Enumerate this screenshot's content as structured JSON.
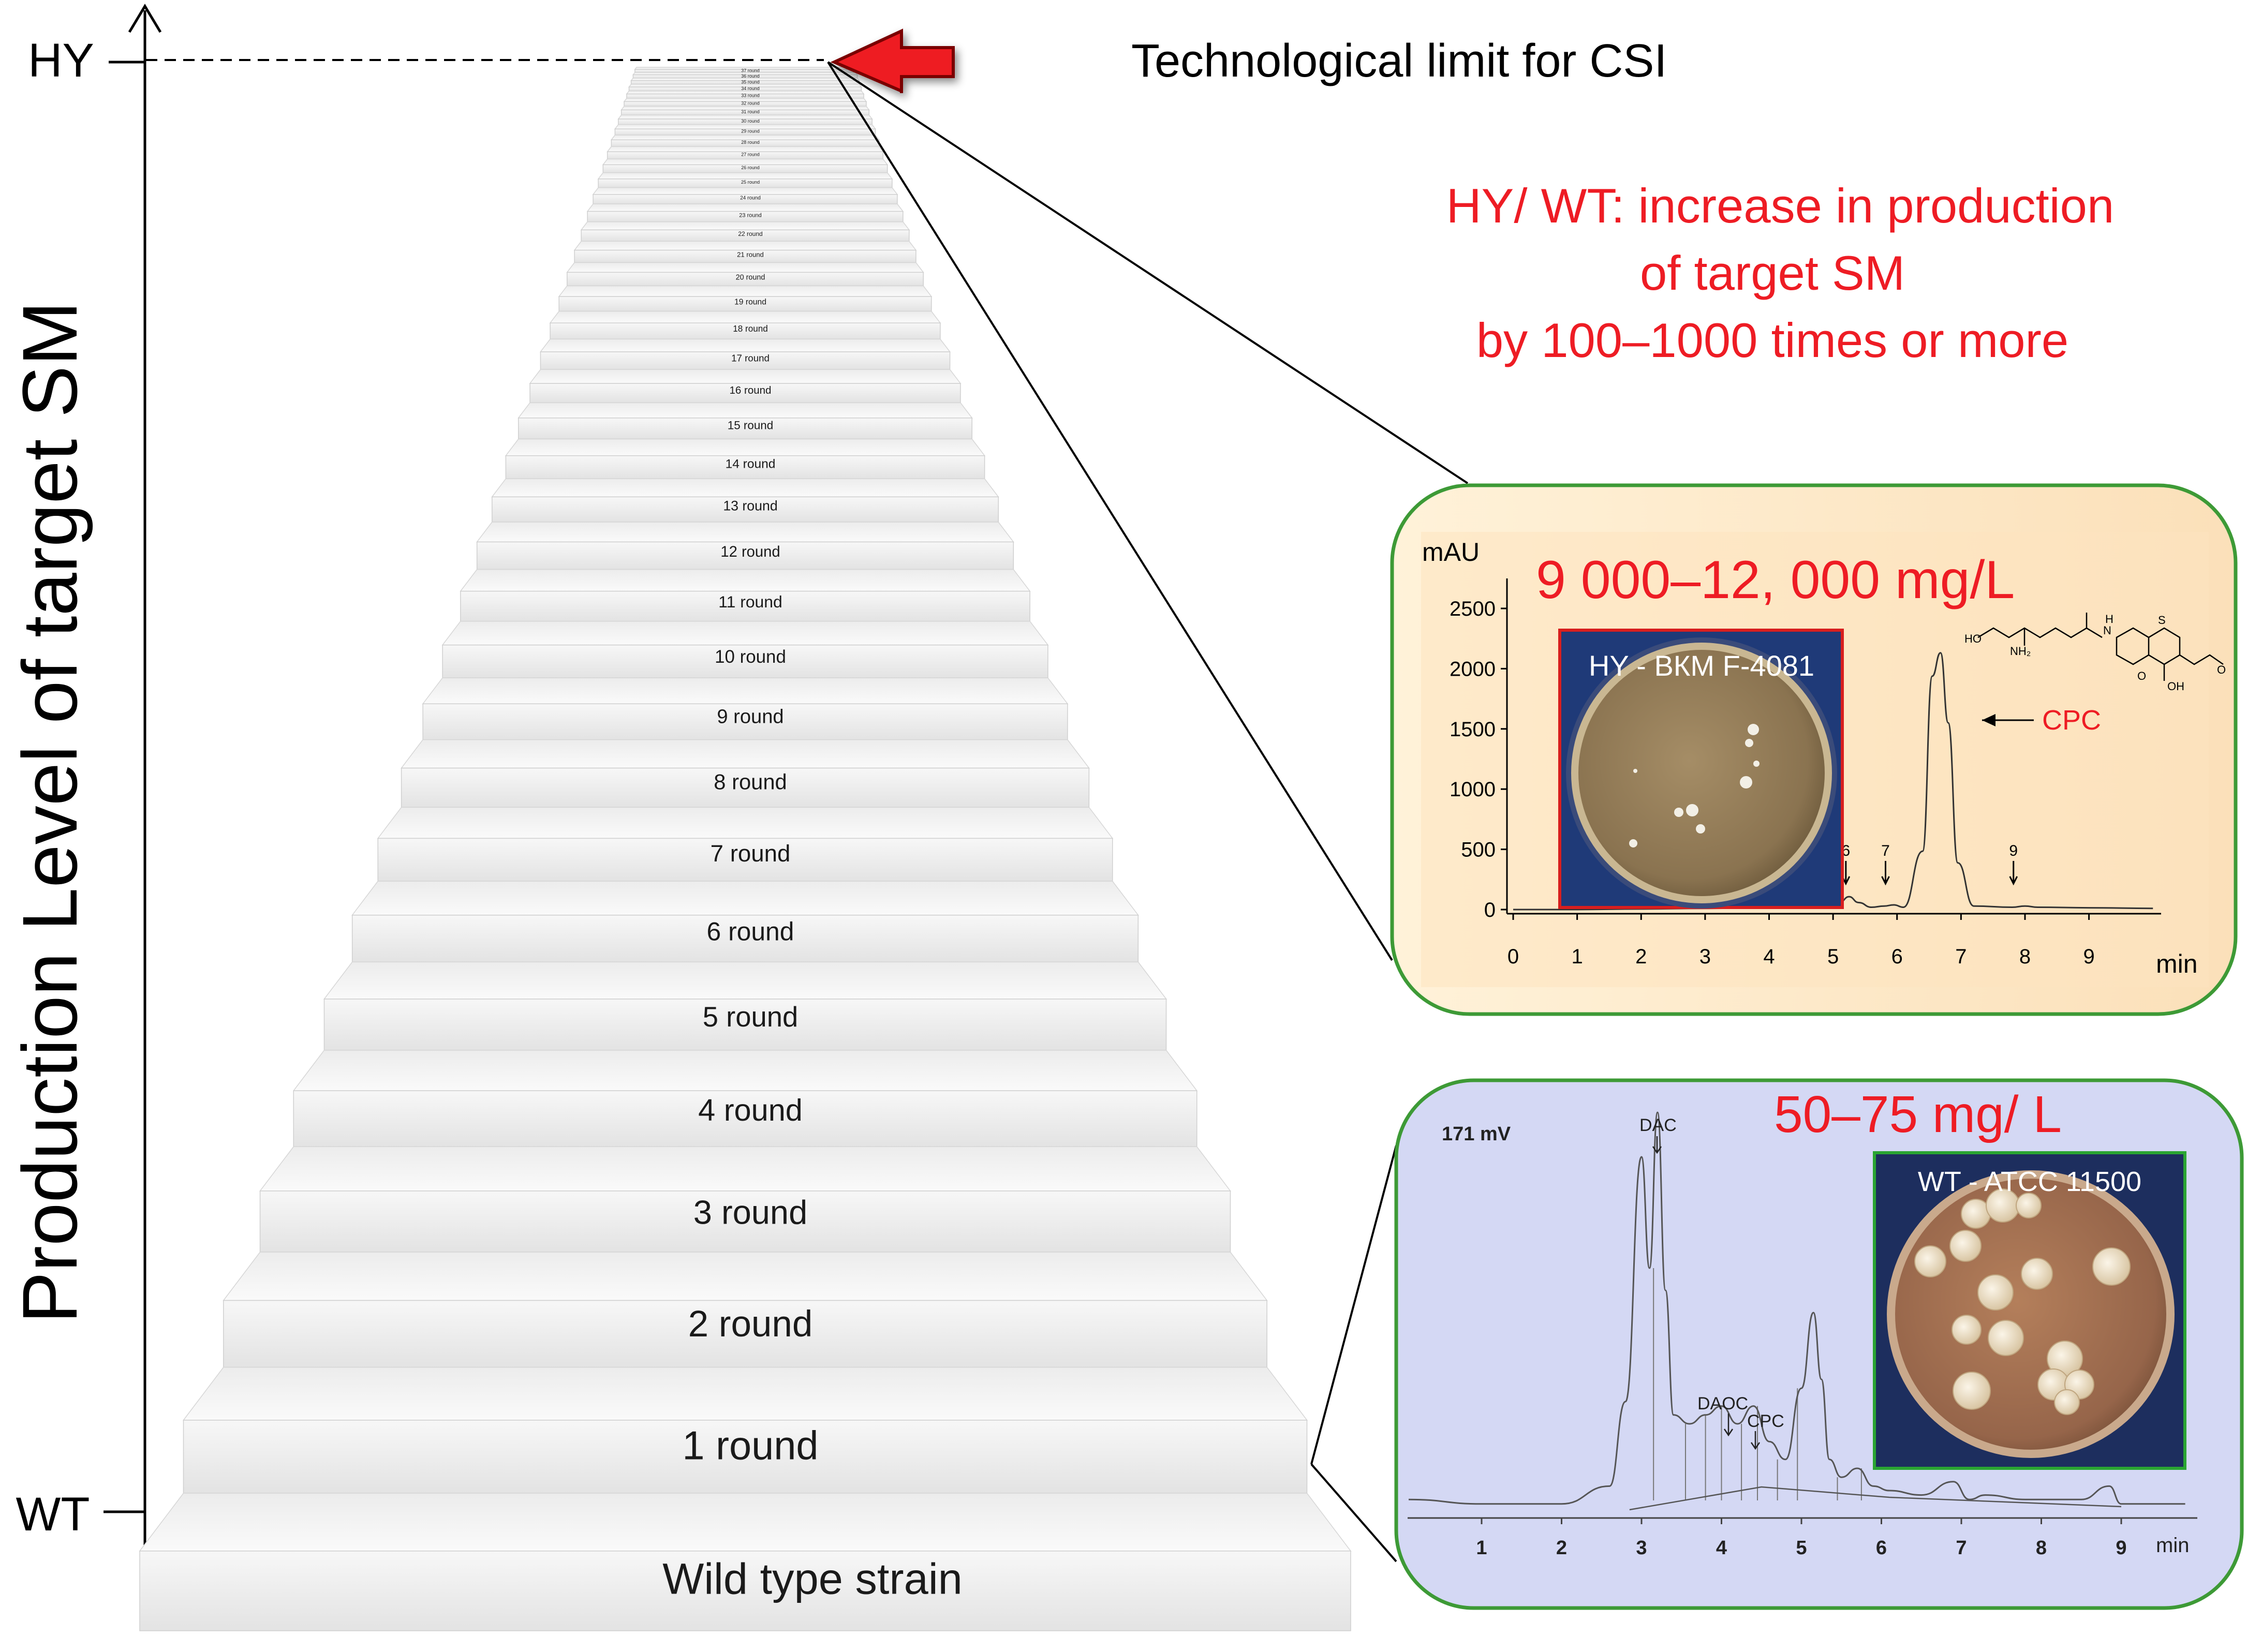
{
  "axis": {
    "ylabel": "Production Level of target SM",
    "top_tick": "HY",
    "bottom_tick": "WT"
  },
  "limit_label": "Technological limit for CSI",
  "steps": [
    "Wild type strain",
    "1 round",
    "2 round",
    "3 round",
    "4 round",
    "5 round",
    "6 round",
    "7 round",
    "8 round",
    "9 round",
    "10 round",
    "11 round",
    "12 round",
    "13 round",
    "14 round",
    "15 round",
    "16 round",
    "17 round",
    "18 round",
    "19 round",
    "20 round",
    "21 round",
    "22 round",
    "23 round",
    "24 round",
    "25 round",
    "26 round",
    "27 round",
    "28 round",
    "29 round",
    "30 round",
    "31 round",
    "32 round",
    "33 round",
    "34 round",
    "35 round",
    "36 round",
    "37 round"
  ],
  "summary": {
    "line1": "HY/ WT: increase in production",
    "line2": "of target SM",
    "line3": "by 100–1000 times or more"
  },
  "hy_panel": {
    "yield": "9 000–12, 000 mg/L",
    "photo_label": "HY - ВКМ F-4081",
    "y_unit": "mAU",
    "x_unit": "min",
    "y_ticks": [
      "0",
      "500",
      "1000",
      "1500",
      "2000",
      "2500"
    ],
    "x_ticks": [
      "0",
      "1",
      "2",
      "3",
      "4",
      "5",
      "6",
      "7",
      "8",
      "9"
    ],
    "peak_label": "CPC",
    "peak_markers": [
      "6",
      "7",
      "9"
    ],
    "chart_data": {
      "type": "line",
      "y_unit": "mAU",
      "x_unit": "min",
      "xlim": [
        0,
        10
      ],
      "ylim": [
        0,
        2800
      ],
      "x": [
        0,
        1,
        2,
        3,
        4,
        4.8,
        5.1,
        5.25,
        5.4,
        5.6,
        5.8,
        5.95,
        6.1,
        6.4,
        6.55,
        6.68,
        6.8,
        6.95,
        7.2,
        7.8,
        8.0,
        8.2,
        9,
        10
      ],
      "y": [
        0,
        0,
        5,
        10,
        15,
        20,
        60,
        110,
        60,
        20,
        30,
        40,
        20,
        500,
        2000,
        2200,
        1600,
        400,
        30,
        20,
        30,
        20,
        15,
        10
      ]
    }
  },
  "wt_panel": {
    "yield": "50–75 mg/ L",
    "photo_label": "WT - ATCC 11500",
    "y_unit": "171 mV",
    "x_unit": "min",
    "x_ticks": [
      "1",
      "2",
      "3",
      "4",
      "5",
      "6",
      "7",
      "8",
      "9"
    ],
    "peak_labels": [
      "DAC",
      "DAOC",
      "CPC"
    ],
    "chart_data": {
      "type": "line",
      "y_unit": "mV",
      "x_unit": "min",
      "xlim": [
        0,
        9.8
      ],
      "x": [
        0,
        1,
        2,
        2.6,
        2.8,
        3.0,
        3.1,
        3.2,
        3.3,
        3.4,
        3.6,
        3.8,
        4.0,
        4.2,
        4.4,
        4.6,
        4.8,
        5.0,
        5.15,
        5.25,
        5.35,
        5.5,
        5.7,
        5.9,
        6.1,
        6.5,
        6.9,
        7.1,
        7.3,
        7.8,
        8.5,
        8.85,
        9.0,
        9.2,
        9.8
      ],
      "y": [
        3,
        2,
        2,
        6,
        25,
        80,
        55,
        90,
        50,
        22,
        20,
        22,
        24,
        20,
        24,
        16,
        12,
        28,
        45,
        30,
        12,
        8,
        10,
        6,
        5,
        4,
        7,
        3,
        4,
        3,
        3,
        6,
        2,
        2,
        2
      ]
    }
  },
  "colors": {
    "accent_red": "#ee1c24",
    "hy_panel_fill": "#fde3c0",
    "wt_panel_fill": "#d4d8f4",
    "panel_border": "#3d9a36",
    "hy_photo_border": "#d81e1e",
    "wt_photo_border": "#2aa532"
  }
}
